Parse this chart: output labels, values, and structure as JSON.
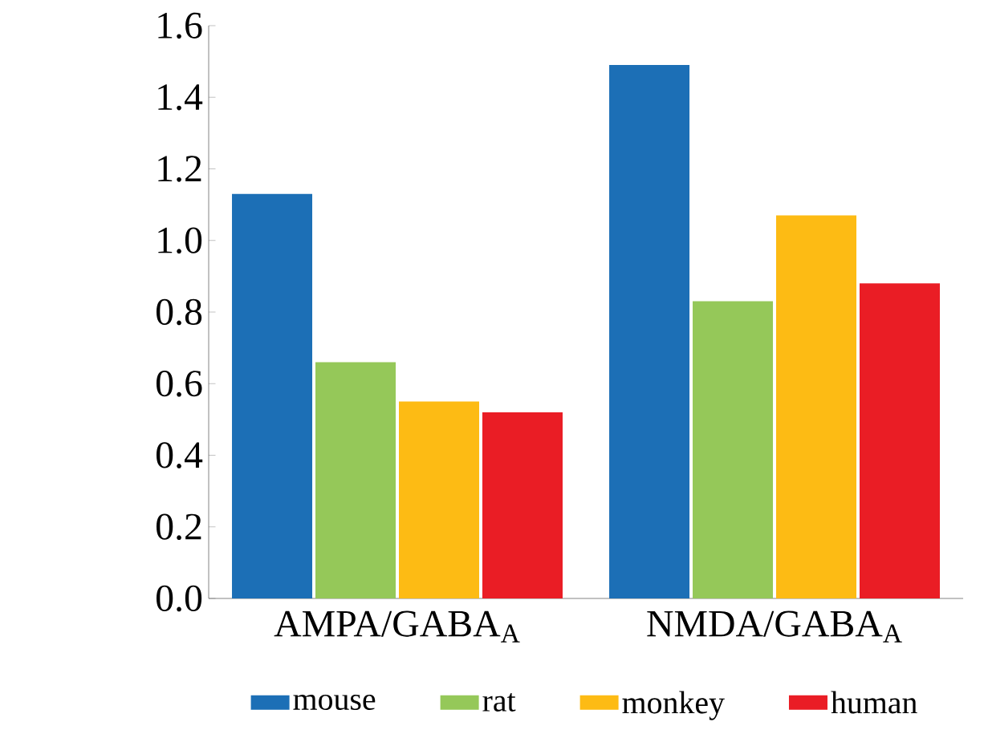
{
  "chart_data": {
    "type": "bar",
    "categories": [
      "AMPA/GABA$_{A}$",
      "NMDA/GABA$_{A}$"
    ],
    "series": [
      {
        "name": "mouse",
        "color": "#1c6fb6",
        "values": [
          1.13,
          1.49
        ]
      },
      {
        "name": "rat",
        "color": "#95c859",
        "values": [
          0.66,
          0.83
        ]
      },
      {
        "name": "monkey",
        "color": "#fdbb14",
        "values": [
          0.55,
          1.07
        ]
      },
      {
        "name": "human",
        "color": "#ea1d25",
        "values": [
          0.52,
          0.88
        ]
      }
    ],
    "ylim": [
      0,
      1.6
    ],
    "yticks": [
      {
        "value": 0,
        "label": "0.0"
      },
      {
        "value": 0.2,
        "label": "0.2"
      },
      {
        "value": 0.4,
        "label": "0.4"
      },
      {
        "value": 0.6,
        "label": "0.6"
      },
      {
        "value": 0.8,
        "label": "0.8"
      },
      {
        "value": 1.0,
        "label": "1.0"
      },
      {
        "value": 1.2,
        "label": "1.2"
      },
      {
        "value": 1.4,
        "label": "1.4"
      },
      {
        "value": 1.6,
        "label": "1.6"
      }
    ],
    "grid": false,
    "legend": "bottom"
  }
}
